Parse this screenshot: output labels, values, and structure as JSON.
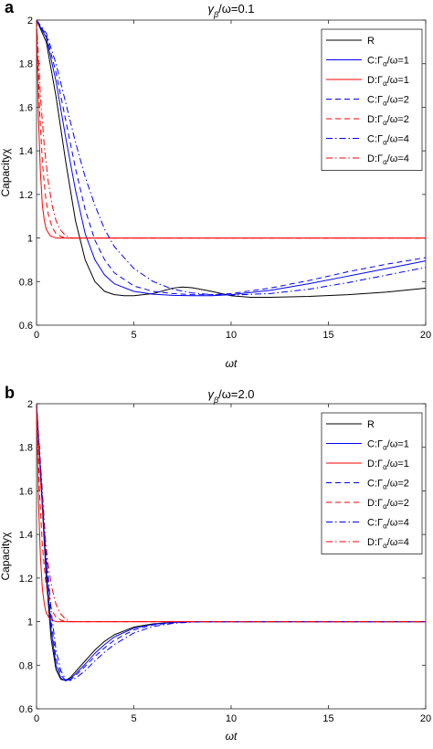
{
  "panels": [
    {
      "letter": "a",
      "title_main": "γ",
      "title_sub": "β",
      "title_rest": "/ω=0.1",
      "ylabel": "Capacityχ",
      "xlabel": "ωt"
    },
    {
      "letter": "b",
      "title_main": "γ",
      "title_sub": "β",
      "title_rest": "/ω=2.0",
      "ylabel": "Capacityχ",
      "xlabel": "ωt"
    }
  ],
  "legend_entries": [
    {
      "prefix": "R",
      "sub": "",
      "suffix": "",
      "color": "#000000",
      "dash": "solid"
    },
    {
      "prefix": "C:Γ",
      "sub": "α",
      "suffix": "/ω=1",
      "color": "#0000ff",
      "dash": "solid"
    },
    {
      "prefix": "D:Γ",
      "sub": "α",
      "suffix": "/ω=1",
      "color": "#ff0000",
      "dash": "solid"
    },
    {
      "prefix": "C:Γ",
      "sub": "α",
      "suffix": "/ω=2",
      "color": "#0000ff",
      "dash": "dashed"
    },
    {
      "prefix": "D:Γ",
      "sub": "α",
      "suffix": "/ω=2",
      "color": "#ff0000",
      "dash": "dashed"
    },
    {
      "prefix": "C:Γ",
      "sub": "α",
      "suffix": "/ω=4",
      "color": "#0000ff",
      "dash": "dashdot"
    },
    {
      "prefix": "D:Γ",
      "sub": "α",
      "suffix": "/ω=4",
      "color": "#ff0000",
      "dash": "dashdot"
    }
  ],
  "chart_data": [
    {
      "type": "line",
      "title": "γβ/ω=0.1",
      "xlabel": "ωt",
      "ylabel": "Capacityχ",
      "xlim": [
        0,
        20
      ],
      "ylim": [
        0.6,
        2
      ],
      "xticks": [
        0,
        5,
        10,
        15,
        20
      ],
      "yticks": [
        0.6,
        0.8,
        1,
        1.2,
        1.4,
        1.6,
        1.8,
        2
      ],
      "grid": false,
      "legend_position": "top-right",
      "series": [
        {
          "name": "R",
          "color": "#000000",
          "dash": "solid",
          "x": [
            0,
            0.5,
            1,
            1.5,
            2,
            2.5,
            3,
            3.5,
            4,
            4.5,
            5,
            6,
            7,
            7.5,
            8,
            9,
            10,
            11,
            12,
            14,
            16,
            18,
            20
          ],
          "y": [
            2,
            1.9,
            1.65,
            1.35,
            1.08,
            0.9,
            0.8,
            0.755,
            0.74,
            0.735,
            0.735,
            0.745,
            0.77,
            0.775,
            0.772,
            0.755,
            0.735,
            0.728,
            0.728,
            0.732,
            0.74,
            0.752,
            0.77
          ]
        },
        {
          "name": "C:Γα/ω=1",
          "color": "#0000ff",
          "dash": "solid",
          "x": [
            0,
            0.5,
            1,
            1.5,
            2,
            2.5,
            3,
            3.5,
            4,
            5,
            6,
            7,
            8,
            9,
            10,
            12,
            14,
            16,
            18,
            20
          ],
          "y": [
            2,
            1.92,
            1.72,
            1.46,
            1.22,
            1.02,
            0.9,
            0.83,
            0.79,
            0.755,
            0.742,
            0.737,
            0.735,
            0.735,
            0.74,
            0.76,
            0.79,
            0.825,
            0.86,
            0.895
          ]
        },
        {
          "name": "D:Γα/ω=1",
          "color": "#ff0000",
          "dash": "solid",
          "x": [
            0,
            0.1,
            0.2,
            0.3,
            0.4,
            0.5,
            0.7,
            1,
            1.5,
            20
          ],
          "y": [
            2,
            1.55,
            1.3,
            1.15,
            1.08,
            1.04,
            1.01,
            1.0,
            1.0,
            1.0
          ]
        },
        {
          "name": "C:Γα/ω=2",
          "color": "#0000ff",
          "dash": "dashed",
          "x": [
            0,
            0.5,
            1,
            1.5,
            2,
            2.5,
            3,
            3.5,
            4,
            5,
            6,
            7,
            8,
            9,
            10,
            12,
            14,
            16,
            18,
            20
          ],
          "y": [
            2,
            1.93,
            1.76,
            1.54,
            1.32,
            1.13,
            0.99,
            0.9,
            0.84,
            0.78,
            0.755,
            0.745,
            0.74,
            0.74,
            0.745,
            0.77,
            0.805,
            0.845,
            0.88,
            0.91
          ]
        },
        {
          "name": "D:Γα/ω=2",
          "color": "#ff0000",
          "dash": "dashed",
          "x": [
            0,
            0.15,
            0.3,
            0.45,
            0.6,
            0.8,
            1,
            1.3,
            1.6,
            20
          ],
          "y": [
            2,
            1.6,
            1.35,
            1.2,
            1.11,
            1.05,
            1.02,
            1.005,
            1.0,
            1.0
          ]
        },
        {
          "name": "C:Γα/ω=4",
          "color": "#0000ff",
          "dash": "dashdot",
          "x": [
            0,
            0.5,
            1,
            1.5,
            2,
            2.5,
            3,
            3.5,
            4,
            5,
            6,
            7,
            8,
            9,
            10,
            12,
            14,
            16,
            18,
            20
          ],
          "y": [
            2,
            1.94,
            1.8,
            1.62,
            1.44,
            1.28,
            1.15,
            1.04,
            0.96,
            0.86,
            0.8,
            0.765,
            0.748,
            0.74,
            0.738,
            0.745,
            0.765,
            0.795,
            0.83,
            0.865
          ]
        },
        {
          "name": "D:Γα/ω=4",
          "color": "#ff0000",
          "dash": "dashdot",
          "x": [
            0,
            0.2,
            0.4,
            0.6,
            0.8,
            1,
            1.2,
            1.5,
            1.8,
            20
          ],
          "y": [
            2,
            1.65,
            1.42,
            1.26,
            1.15,
            1.08,
            1.04,
            1.01,
            1.0,
            1.0
          ]
        }
      ]
    },
    {
      "type": "line",
      "title": "γβ/ω=2.0",
      "xlabel": "ωt",
      "ylabel": "Capacityχ",
      "xlim": [
        0,
        20
      ],
      "ylim": [
        0.6,
        2
      ],
      "xticks": [
        0,
        5,
        10,
        15,
        20
      ],
      "yticks": [
        0.6,
        0.8,
        1,
        1.2,
        1.4,
        1.6,
        1.8,
        2
      ],
      "grid": false,
      "legend_position": "top-right",
      "series": [
        {
          "name": "R",
          "color": "#000000",
          "dash": "solid",
          "x": [
            0,
            0.25,
            0.5,
            0.75,
            1,
            1.25,
            1.5,
            1.75,
            2,
            2.5,
            3,
            3.5,
            4,
            5,
            6,
            7,
            8,
            9,
            10,
            12,
            15,
            20
          ],
          "y": [
            2,
            1.6,
            1.2,
            0.92,
            0.78,
            0.735,
            0.73,
            0.745,
            0.77,
            0.82,
            0.87,
            0.91,
            0.94,
            0.975,
            0.99,
            0.997,
            1.0,
            1.0,
            1.0,
            1.0,
            1.0,
            1.0
          ]
        },
        {
          "name": "C:Γα/ω=1",
          "color": "#0000ff",
          "dash": "solid",
          "x": [
            0,
            0.25,
            0.5,
            0.75,
            1,
            1.25,
            1.5,
            1.75,
            2,
            2.5,
            3,
            3.5,
            4,
            5,
            6,
            7,
            8,
            9,
            10,
            12,
            15,
            20
          ],
          "y": [
            2,
            1.62,
            1.24,
            0.96,
            0.8,
            0.74,
            0.728,
            0.738,
            0.76,
            0.805,
            0.855,
            0.895,
            0.93,
            0.97,
            0.988,
            0.996,
            1.0,
            1.0,
            1.0,
            1.0,
            1.0,
            1.0
          ]
        },
        {
          "name": "D:Γα/ω=1",
          "color": "#ff0000",
          "dash": "solid",
          "x": [
            0,
            0.1,
            0.2,
            0.3,
            0.4,
            0.5,
            0.7,
            1,
            1.5,
            20
          ],
          "y": [
            2,
            1.55,
            1.3,
            1.15,
            1.08,
            1.04,
            1.01,
            1.0,
            1.0,
            1.0
          ]
        },
        {
          "name": "C:Γα/ω=2",
          "color": "#0000ff",
          "dash": "dashed",
          "x": [
            0,
            0.25,
            0.5,
            0.75,
            1,
            1.25,
            1.5,
            1.75,
            2,
            2.5,
            3,
            3.5,
            4,
            5,
            6,
            7,
            8,
            9,
            10,
            12,
            15,
            20
          ],
          "y": [
            2,
            1.64,
            1.28,
            1.0,
            0.83,
            0.755,
            0.73,
            0.735,
            0.752,
            0.795,
            0.84,
            0.88,
            0.915,
            0.962,
            0.985,
            0.995,
            1.0,
            1.0,
            1.0,
            1.0,
            1.0,
            1.0
          ]
        },
        {
          "name": "D:Γα/ω=2",
          "color": "#ff0000",
          "dash": "dashed",
          "x": [
            0,
            0.15,
            0.3,
            0.45,
            0.6,
            0.8,
            1,
            1.3,
            1.6,
            20
          ],
          "y": [
            2,
            1.6,
            1.35,
            1.2,
            1.11,
            1.05,
            1.02,
            1.005,
            1.0,
            1.0
          ]
        },
        {
          "name": "C:Γα/ω=4",
          "color": "#0000ff",
          "dash": "dashdot",
          "x": [
            0,
            0.25,
            0.5,
            0.75,
            1,
            1.25,
            1.5,
            1.75,
            2,
            2.5,
            3,
            3.5,
            4,
            5,
            6,
            7,
            8,
            9,
            10,
            12,
            15,
            20
          ],
          "y": [
            2,
            1.66,
            1.32,
            1.05,
            0.87,
            0.775,
            0.735,
            0.73,
            0.74,
            0.775,
            0.82,
            0.86,
            0.895,
            0.948,
            0.978,
            0.992,
            0.998,
            1.0,
            1.0,
            1.0,
            1.0,
            1.0
          ]
        },
        {
          "name": "D:Γα/ω=4",
          "color": "#ff0000",
          "dash": "dashdot",
          "x": [
            0,
            0.2,
            0.4,
            0.6,
            0.8,
            1,
            1.2,
            1.5,
            1.8,
            20
          ],
          "y": [
            2,
            1.65,
            1.42,
            1.26,
            1.15,
            1.08,
            1.04,
            1.01,
            1.0,
            1.0
          ]
        }
      ]
    }
  ]
}
